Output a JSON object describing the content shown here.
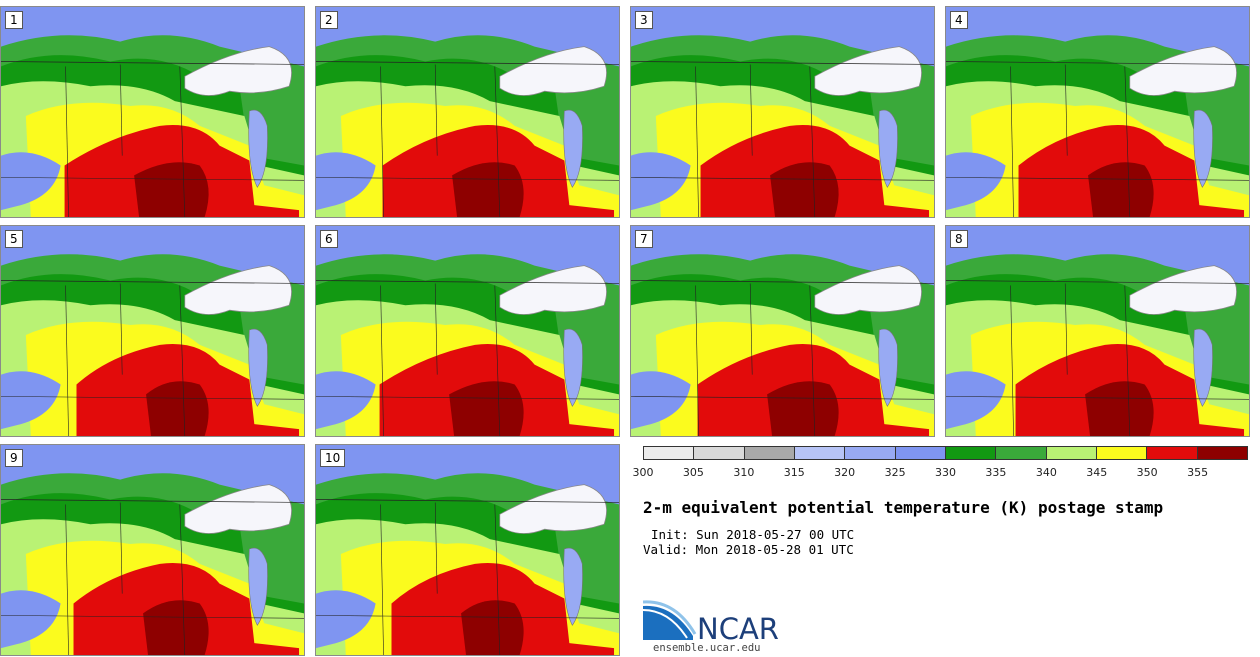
{
  "panels": [
    {
      "label": "1"
    },
    {
      "label": "2"
    },
    {
      "label": "3"
    },
    {
      "label": "4"
    },
    {
      "label": "5"
    },
    {
      "label": "6"
    },
    {
      "label": "7"
    },
    {
      "label": "8"
    },
    {
      "label": "9"
    },
    {
      "label": "10"
    }
  ],
  "colorbar": {
    "colors": [
      "#ececec",
      "#d9d9d9",
      "#a9a9a9",
      "#b7c4f6",
      "#98aaf3",
      "#7f95f1",
      "#129912",
      "#3aa93a",
      "#b9f274",
      "#fbfb1e",
      "#e20b0b",
      "#8e0000"
    ],
    "ticks": [
      "300",
      "305",
      "310",
      "315",
      "320",
      "325",
      "330",
      "335",
      "340",
      "345",
      "350",
      "355"
    ]
  },
  "title": "2-m equivalent potential temperature (K) postage stamp",
  "init": "Init: Sun 2018-05-27 00 UTC",
  "valid": "Valid: Mon 2018-05-28 01 UTC",
  "logo": {
    "text": "NCAR",
    "site": "ensemble.ucar.edu"
  }
}
